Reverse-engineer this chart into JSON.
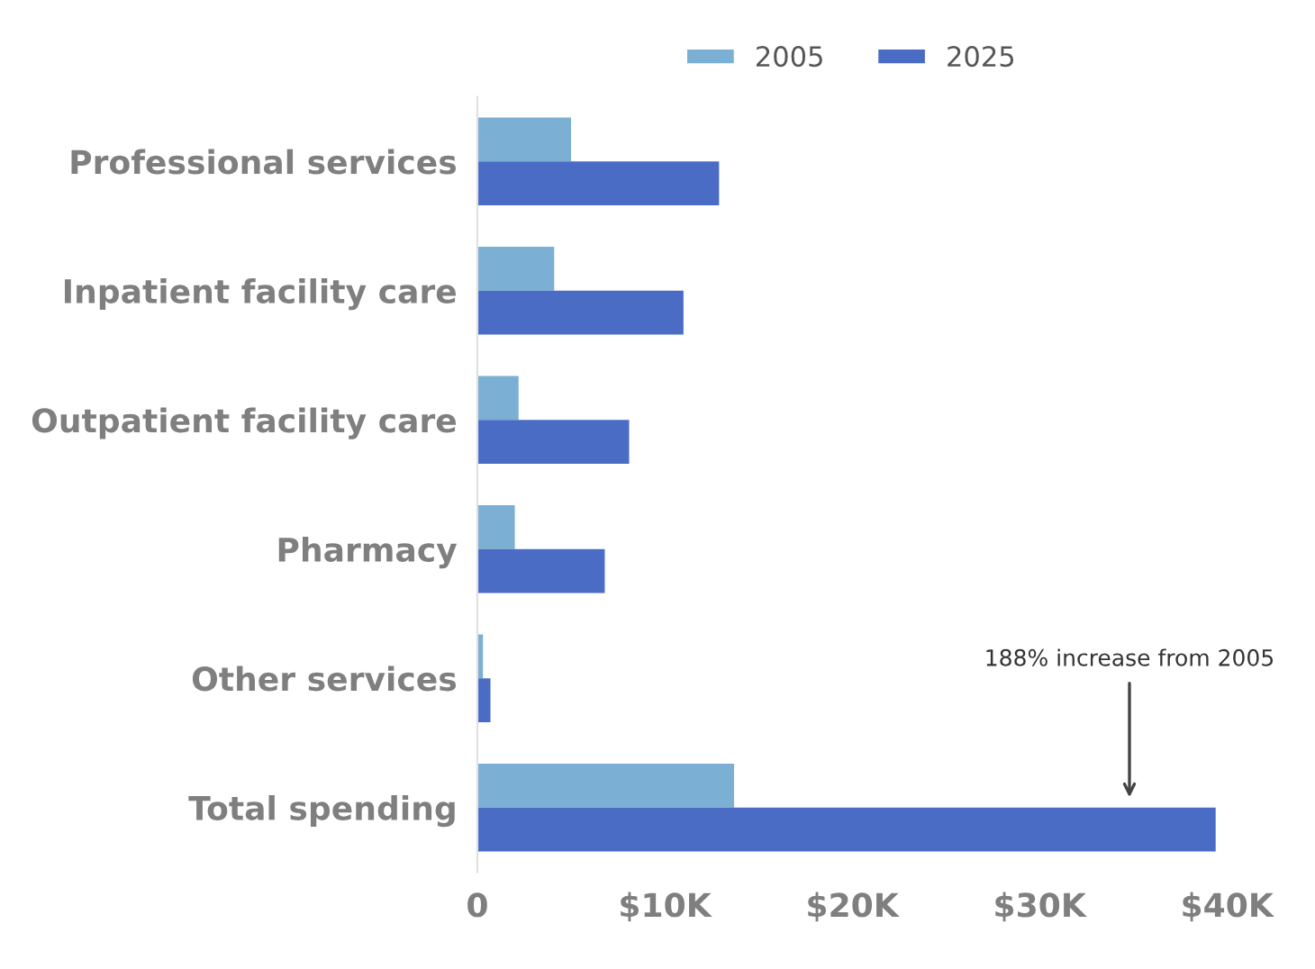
{
  "chart_data": {
    "type": "bar",
    "orientation": "horizontal",
    "categories": [
      "Professional services",
      "Inpatient facility care",
      "Outpatient facility care",
      "Pharmacy",
      "Other services",
      "Total spending"
    ],
    "series": [
      {
        "name": "2005",
        "color": "#7bafd4",
        "values": [
          5.0,
          4.1,
          2.2,
          2.0,
          0.3,
          13.7
        ]
      },
      {
        "name": "2025",
        "color": "#4a6cc4",
        "values": [
          12.9,
          11.0,
          8.1,
          6.8,
          0.7,
          39.4
        ]
      }
    ],
    "xlim": [
      0,
      40
    ],
    "xticks": [
      {
        "value": 0,
        "label": "0"
      },
      {
        "value": 10,
        "label": "$10K"
      },
      {
        "value": 20,
        "label": "$20K"
      },
      {
        "value": 30,
        "label": "$30K"
      },
      {
        "value": 40,
        "label": "$40K"
      }
    ],
    "legend": "top",
    "grid": false,
    "annotations": [
      "188% increase from 2005"
    ]
  }
}
